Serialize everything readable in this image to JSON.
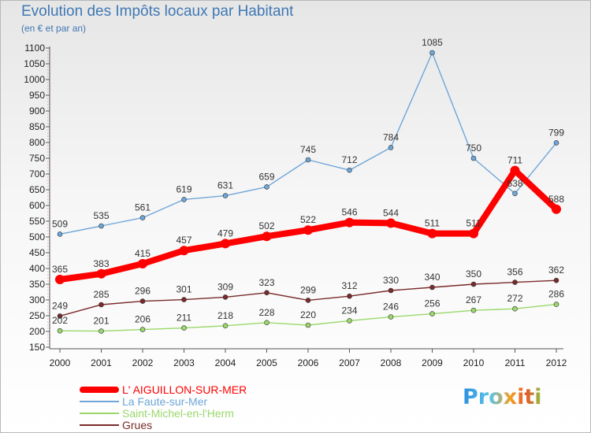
{
  "title": "Evolution des Impôts locaux par Habitant",
  "subtitle": "(en € et par an)",
  "logo_text": "Proxiti",
  "chart_data": {
    "type": "line",
    "x": [
      "2000",
      "2001",
      "2002",
      "2003",
      "2004",
      "2005",
      "2006",
      "2007",
      "2008",
      "2009",
      "2010",
      "2011",
      "2012"
    ],
    "ylim": [
      150,
      1100
    ],
    "yticks": [
      150,
      200,
      250,
      300,
      350,
      400,
      450,
      500,
      550,
      600,
      650,
      700,
      750,
      800,
      850,
      900,
      950,
      1000,
      1050,
      1100
    ],
    "grid": false,
    "legend_position": "bottom-left",
    "series": [
      {
        "name": "L' AIGUILLON-SUR-MER",
        "color": "#ff0000",
        "values": [
          365,
          383,
          415,
          457,
          479,
          502,
          522,
          546,
          544,
          511,
          511,
          711,
          588
        ]
      },
      {
        "name": "La Faute-sur-Mer",
        "color": "#6ea6d8",
        "values": [
          509,
          535,
          561,
          619,
          631,
          659,
          745,
          712,
          784,
          1085,
          750,
          638,
          799
        ]
      },
      {
        "name": "Saint-Michel-en-l'Herm",
        "color": "#9ad86b",
        "values": [
          202,
          201,
          206,
          211,
          218,
          228,
          220,
          234,
          246,
          256,
          267,
          272,
          286
        ]
      },
      {
        "name": "Grues",
        "color": "#7a2a2a",
        "values": [
          249,
          285,
          296,
          301,
          309,
          323,
          299,
          312,
          330,
          340,
          350,
          356,
          362
        ]
      }
    ]
  }
}
